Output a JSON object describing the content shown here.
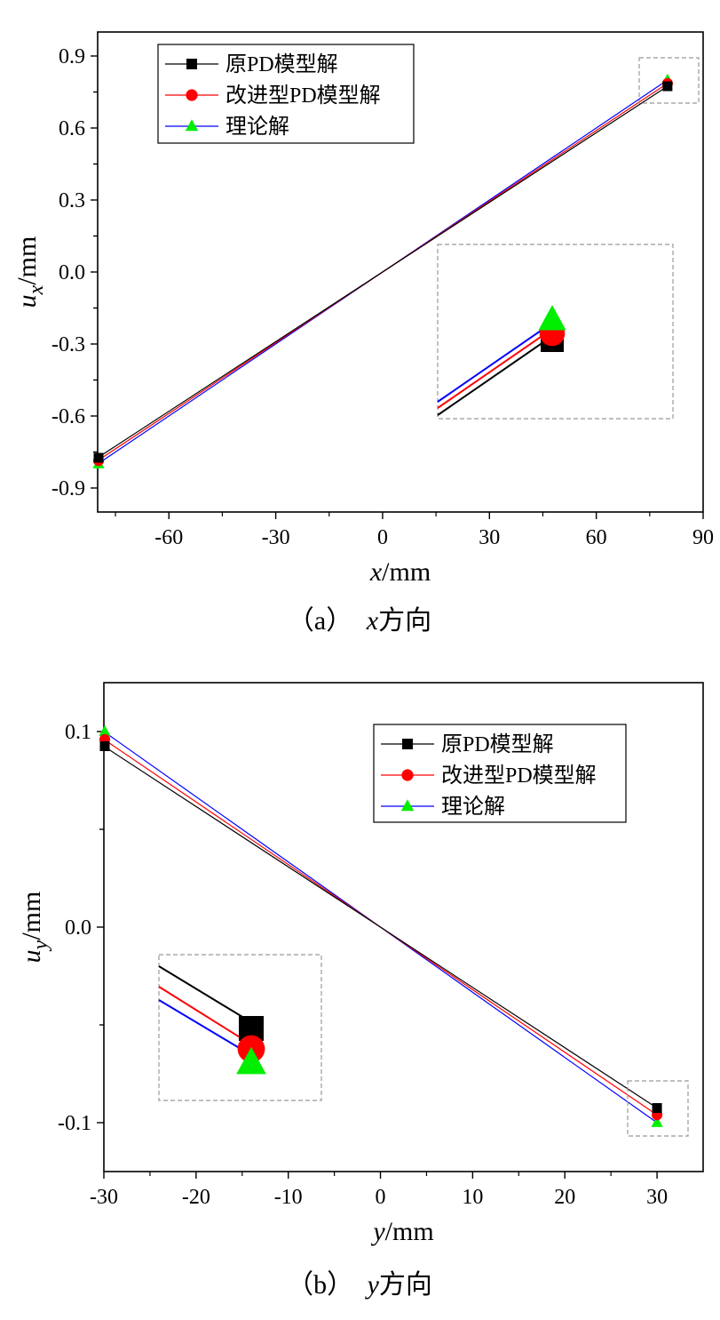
{
  "chart_data": [
    {
      "type": "line",
      "caption": {
        "prefix": "（a）",
        "var": "x",
        "suffix": "方向"
      },
      "xlabel": {
        "var": "x",
        "unit": "/mm"
      },
      "ylabel": {
        "var": "u",
        "sub": "x",
        "unit": "/mm"
      },
      "xlim": [
        -80,
        90
      ],
      "ylim": [
        -1.0,
        1.0
      ],
      "xticks": [
        -60,
        -30,
        0,
        30,
        60,
        90
      ],
      "xtick_labels": [
        "-60",
        "-30",
        "0",
        "30",
        "60",
        "90"
      ],
      "yticks": [
        -0.9,
        -0.6,
        -0.3,
        0.0,
        0.3,
        0.6,
        0.9
      ],
      "ytick_labels": [
        "-0.9",
        "-0.6",
        "-0.3",
        "0.0",
        "0.3",
        "0.6",
        "0.9"
      ],
      "legend_position": "top-left",
      "series": [
        {
          "name": "原PD模型解",
          "color": "#000000",
          "marker": "square",
          "x": [
            -80,
            80
          ],
          "y": [
            -0.774,
            0.774
          ]
        },
        {
          "name": "改进型PD模型解",
          "color": "#ff0000",
          "marker": "circle",
          "x": [
            -80,
            80
          ],
          "y": [
            -0.786,
            0.786
          ]
        },
        {
          "name": "理论解",
          "color": "#0000ff",
          "marker_color": "#00ee00",
          "marker": "triangle",
          "x": [
            -80,
            80
          ],
          "y": [
            -0.8,
            0.8
          ]
        }
      ],
      "inset": {
        "position": "center-right",
        "detail_of": "upper-right end point"
      }
    },
    {
      "type": "line",
      "caption": {
        "prefix": "（b）",
        "var": "y",
        "suffix": "方向"
      },
      "xlabel": {
        "var": "y",
        "unit": "/mm"
      },
      "ylabel": {
        "var": "u",
        "sub": "y",
        "unit": "/mm"
      },
      "xlim": [
        -30,
        35
      ],
      "ylim": [
        -0.125,
        0.125
      ],
      "xticks": [
        -30,
        -20,
        -10,
        0,
        10,
        20,
        30
      ],
      "xtick_labels": [
        "-30",
        "-20",
        "-10",
        "0",
        "10",
        "20",
        "30"
      ],
      "yticks": [
        -0.1,
        0.0,
        0.1
      ],
      "ytick_labels": [
        "-0.1",
        "0.0",
        "0.1"
      ],
      "legend_position": "top-right",
      "series": [
        {
          "name": "原PD模型解",
          "color": "#000000",
          "marker": "square",
          "x": [
            -30,
            30
          ],
          "y": [
            0.0925,
            -0.0925
          ]
        },
        {
          "name": "改进型PD模型解",
          "color": "#ff0000",
          "marker": "circle",
          "x": [
            -30,
            30
          ],
          "y": [
            0.096,
            -0.096
          ]
        },
        {
          "name": "理论解",
          "color": "#0000ff",
          "marker_color": "#00ee00",
          "marker": "triangle",
          "x": [
            -30,
            30
          ],
          "y": [
            0.1,
            -0.1
          ]
        }
      ],
      "inset": {
        "position": "center-left",
        "detail_of": "lower-right end point"
      }
    }
  ]
}
